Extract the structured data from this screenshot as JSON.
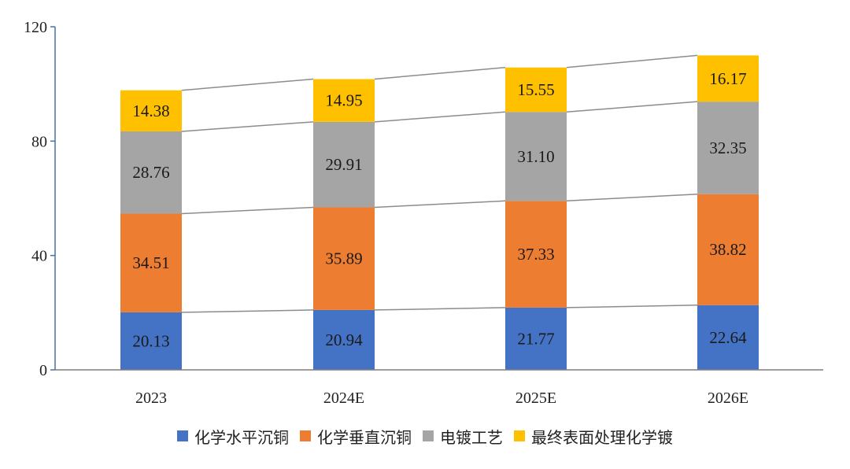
{
  "chart_data": {
    "type": "bar",
    "stacked": true,
    "categories": [
      "2023",
      "2024E",
      "2025E",
      "2026E"
    ],
    "series": [
      {
        "name": "化学水平沉铜",
        "color": "#4472C4",
        "values": [
          20.13,
          20.94,
          21.77,
          22.64
        ],
        "labels": [
          "20.13",
          "20.94",
          "21.77",
          "22.64"
        ]
      },
      {
        "name": "化学垂直沉铜",
        "color": "#ED7D31",
        "values": [
          34.51,
          35.89,
          37.33,
          38.82
        ],
        "labels": [
          "34.51",
          "35.89",
          "37.33",
          "38.82"
        ]
      },
      {
        "name": "电镀工艺",
        "color": "#A5A5A5",
        "values": [
          28.76,
          29.91,
          31.1,
          32.35
        ],
        "labels": [
          "28.76",
          "29.91",
          "31.10",
          "32.35"
        ]
      },
      {
        "name": "最终表面处理化学镀",
        "color": "#FFC000",
        "values": [
          14.38,
          14.95,
          15.55,
          16.17
        ],
        "labels": [
          "14.38",
          "14.95",
          "15.55",
          "16.17"
        ]
      }
    ],
    "yticks": [
      "0",
      "40",
      "80",
      "120"
    ],
    "ylim": [
      0,
      120
    ],
    "grid": false,
    "series_lines": true,
    "legend": "bottom",
    "title": "",
    "xlabel": "",
    "ylabel": ""
  }
}
